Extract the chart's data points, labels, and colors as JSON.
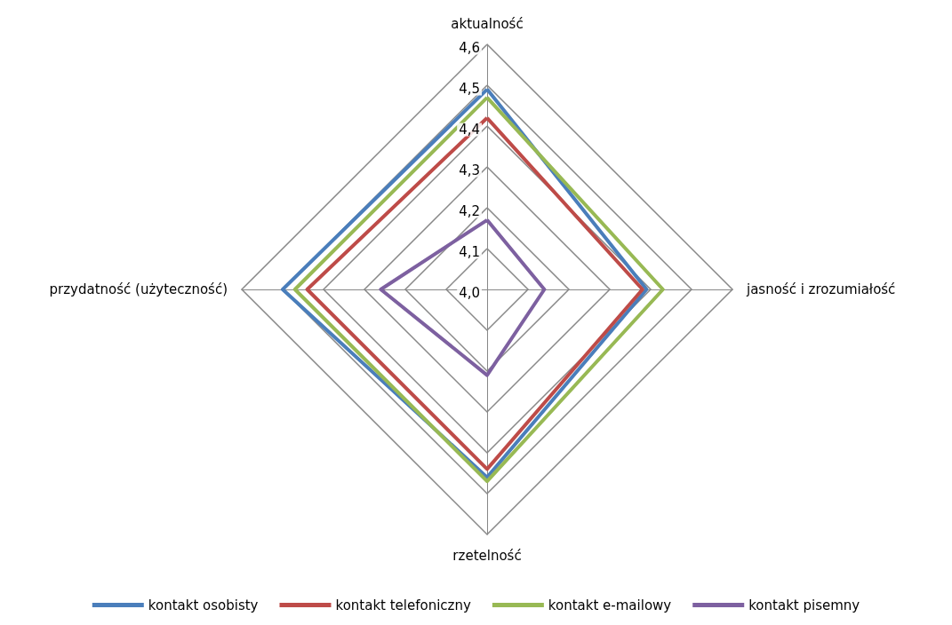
{
  "chart_data": {
    "type": "radar",
    "categories": [
      "aktualność",
      "jasność i zrozumiałość",
      "rzetelność",
      "przydatność (użyteczność)"
    ],
    "ylim": [
      4.0,
      4.6
    ],
    "yticks": [
      {
        "value": 4.0,
        "label": "4,0"
      },
      {
        "value": 4.1,
        "label": "4,1"
      },
      {
        "value": 4.2,
        "label": "4,2"
      },
      {
        "value": 4.3,
        "label": "4,3"
      },
      {
        "value": 4.4,
        "label": "4,4"
      },
      {
        "value": 4.5,
        "label": "4,5"
      },
      {
        "value": 4.6,
        "label": "4,6"
      }
    ],
    "grid": true,
    "legend": "bottom",
    "marker": "none",
    "line_style": "solid",
    "series": [
      {
        "name": "kontakt osobisty",
        "color": "#4a7ebb",
        "values": [
          4.49,
          4.39,
          4.46,
          4.5
        ]
      },
      {
        "name": "kontakt telefoniczny",
        "color": "#be4b48",
        "values": [
          4.42,
          4.38,
          4.44,
          4.44
        ]
      },
      {
        "name": "kontakt e-mailowy",
        "color": "#98b954",
        "values": [
          4.47,
          4.43,
          4.47,
          4.47
        ]
      },
      {
        "name": "kontakt pisemny",
        "color": "#7d60a0",
        "values": [
          4.17,
          4.14,
          4.21,
          4.26
        ]
      }
    ]
  }
}
